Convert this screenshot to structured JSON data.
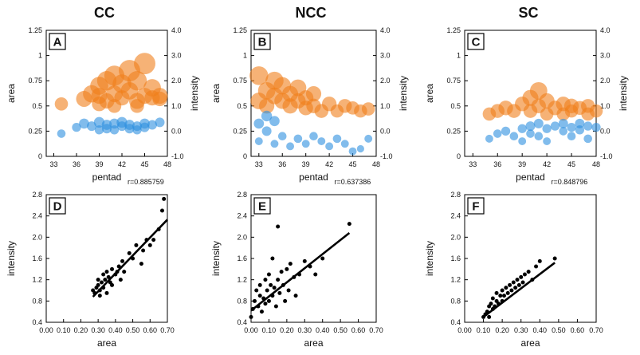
{
  "colors": {
    "area_marker": "#f07f1a",
    "intensity_marker": "#2d8fe0",
    "scatter_point": "#000000",
    "background": "#ffffff"
  },
  "chart_data": [
    {
      "panel": "A",
      "column_title": "CC",
      "type": "scatter",
      "xlabel": "pentad",
      "ylabel": "area",
      "y2label": "intensity",
      "xlim": [
        32,
        48
      ],
      "xticks": [
        "33",
        "36",
        "39",
        "42",
        "45",
        "48"
      ],
      "ylim": [
        0,
        1.25
      ],
      "yticks": [
        "0",
        "0.25",
        "0.5",
        "0.75",
        "1",
        "1.25"
      ],
      "y2lim": [
        -1.0,
        4.0
      ],
      "y2ticks": [
        "-1.0",
        "0.0",
        "1.0",
        "2.0",
        "3.0",
        "4.0"
      ],
      "series": [
        {
          "name": "area",
          "axis": "left",
          "points": [
            [
              34,
              0.52,
              1.0
            ],
            [
              37,
              0.57,
              1.4
            ],
            [
              38,
              0.62,
              1.6
            ],
            [
              39,
              0.6,
              1.4
            ],
            [
              39,
              0.7,
              1.7
            ],
            [
              40,
              0.55,
              1.3
            ],
            [
              40,
              0.75,
              1.9
            ],
            [
              41,
              0.62,
              1.5
            ],
            [
              41,
              0.8,
              2.0
            ],
            [
              42,
              0.58,
              1.3
            ],
            [
              42,
              0.72,
              1.8
            ],
            [
              43,
              0.65,
              1.6
            ],
            [
              43,
              0.85,
              2.2
            ],
            [
              44,
              0.55,
              1.4
            ],
            [
              44,
              0.75,
              1.9
            ],
            [
              45,
              0.6,
              1.4
            ],
            [
              45,
              0.92,
              2.2
            ],
            [
              46,
              0.58,
              1.3
            ],
            [
              46,
              0.68,
              1.6
            ],
            [
              47,
              0.57,
              1.2
            ],
            [
              39,
              0.52,
              1.2
            ],
            [
              41,
              0.5,
              1.1
            ],
            [
              44,
              0.5,
              1.1
            ],
            [
              47,
              0.6,
              1.4
            ]
          ]
        },
        {
          "name": "intensity",
          "axis": "right",
          "points": [
            [
              34,
              -0.1,
              0.8
            ],
            [
              36,
              0.15,
              0.9
            ],
            [
              37,
              0.3,
              1.1
            ],
            [
              38,
              0.2,
              1.0
            ],
            [
              39,
              0.35,
              1.2
            ],
            [
              39,
              0.05,
              0.9
            ],
            [
              40,
              0.25,
              1.1
            ],
            [
              40,
              0.1,
              1.0
            ],
            [
              41,
              0.3,
              1.1
            ],
            [
              41,
              0.05,
              0.9
            ],
            [
              42,
              0.2,
              1.0
            ],
            [
              42,
              0.35,
              1.2
            ],
            [
              43,
              0.1,
              1.0
            ],
            [
              43,
              0.25,
              1.1
            ],
            [
              44,
              0.2,
              1.0
            ],
            [
              44,
              0.05,
              0.9
            ],
            [
              45,
              0.3,
              1.1
            ],
            [
              45,
              0.15,
              1.0
            ],
            [
              46,
              0.25,
              1.0
            ],
            [
              47,
              0.35,
              1.0
            ]
          ]
        }
      ]
    },
    {
      "panel": "B",
      "column_title": "NCC",
      "type": "scatter",
      "xlabel": "pentad",
      "ylabel": "area",
      "y2label": "intensity",
      "xlim": [
        32,
        48
      ],
      "xticks": [
        "33",
        "36",
        "39",
        "42",
        "45",
        "48"
      ],
      "ylim": [
        0,
        1.25
      ],
      "yticks": [
        "0",
        "0.25",
        "0.5",
        "0.75",
        "1",
        "1.25"
      ],
      "y2lim": [
        -1.0,
        4.0
      ],
      "y2ticks": [
        "-1.0",
        "0.0",
        "1.0",
        "2.0",
        "3.0",
        "4.0"
      ],
      "series": [
        {
          "name": "area",
          "axis": "left",
          "points": [
            [
              33,
              0.55,
              1.5
            ],
            [
              33,
              0.8,
              1.8
            ],
            [
              34,
              0.65,
              1.6
            ],
            [
              34,
              0.5,
              1.3
            ],
            [
              35,
              0.75,
              1.7
            ],
            [
              35,
              0.6,
              1.5
            ],
            [
              36,
              0.55,
              1.4
            ],
            [
              36,
              0.7,
              1.6
            ],
            [
              37,
              0.5,
              1.3
            ],
            [
              37,
              0.62,
              1.4
            ],
            [
              38,
              0.55,
              1.3
            ],
            [
              38,
              0.68,
              1.5
            ],
            [
              39,
              0.48,
              1.2
            ],
            [
              39,
              0.58,
              1.3
            ],
            [
              40,
              0.5,
              1.2
            ],
            [
              40,
              0.62,
              1.3
            ],
            [
              41,
              0.45,
              1.1
            ],
            [
              42,
              0.52,
              1.2
            ],
            [
              43,
              0.45,
              1.0
            ],
            [
              44,
              0.5,
              1.1
            ],
            [
              45,
              0.48,
              1.0
            ],
            [
              46,
              0.45,
              1.0
            ],
            [
              47,
              0.47,
              1.0
            ]
          ]
        },
        {
          "name": "intensity",
          "axis": "right",
          "points": [
            [
              33,
              0.3,
              1.1
            ],
            [
              34,
              0.6,
              1.2
            ],
            [
              34,
              0.0,
              1.0
            ],
            [
              35,
              0.4,
              1.1
            ],
            [
              33,
              -0.4,
              0.7
            ],
            [
              35,
              -0.5,
              0.7
            ],
            [
              36,
              -0.2,
              0.8
            ],
            [
              37,
              -0.6,
              0.7
            ],
            [
              38,
              -0.3,
              0.8
            ],
            [
              39,
              -0.5,
              0.7
            ],
            [
              40,
              -0.2,
              0.8
            ],
            [
              41,
              -0.4,
              0.7
            ],
            [
              42,
              -0.6,
              0.7
            ],
            [
              43,
              -0.3,
              0.8
            ],
            [
              44,
              -0.5,
              0.7
            ],
            [
              45,
              -0.8,
              0.7
            ],
            [
              46,
              -0.7,
              0.6
            ],
            [
              47,
              -0.3,
              0.7
            ]
          ]
        }
      ]
    },
    {
      "panel": "C",
      "column_title": "SC",
      "type": "scatter",
      "xlabel": "pentad",
      "ylabel": "area",
      "y2label": "intensity",
      "xlim": [
        32,
        48
      ],
      "xticks": [
        "33",
        "36",
        "39",
        "42",
        "45",
        "48"
      ],
      "ylim": [
        0,
        1.25
      ],
      "yticks": [
        "0",
        "0.25",
        "0.5",
        "0.75",
        "1",
        "1.25"
      ],
      "y2lim": [
        -1.0,
        4.0
      ],
      "y2ticks": [
        "-1.0",
        "0.0",
        "1.0",
        "2.0",
        "3.0",
        "4.0"
      ],
      "series": [
        {
          "name": "area",
          "axis": "left",
          "points": [
            [
              35,
              0.42,
              1.0
            ],
            [
              36,
              0.45,
              1.1
            ],
            [
              37,
              0.48,
              1.2
            ],
            [
              38,
              0.45,
              1.1
            ],
            [
              39,
              0.52,
              1.2
            ],
            [
              40,
              0.58,
              1.4
            ],
            [
              40,
              0.45,
              1.1
            ],
            [
              41,
              0.65,
              1.6
            ],
            [
              41,
              0.5,
              1.2
            ],
            [
              42,
              0.55,
              1.3
            ],
            [
              42,
              0.42,
              1.0
            ],
            [
              43,
              0.48,
              1.2
            ],
            [
              44,
              0.52,
              1.2
            ],
            [
              44,
              0.42,
              1.0
            ],
            [
              45,
              0.5,
              1.2
            ],
            [
              45,
              0.45,
              1.0
            ],
            [
              46,
              0.48,
              1.1
            ],
            [
              47,
              0.5,
              1.1
            ],
            [
              47,
              0.42,
              1.0
            ],
            [
              48,
              0.45,
              1.0
            ]
          ]
        },
        {
          "name": "intensity",
          "axis": "right",
          "points": [
            [
              35,
              -0.3,
              0.7
            ],
            [
              36,
              -0.1,
              0.8
            ],
            [
              37,
              0.0,
              0.9
            ],
            [
              38,
              -0.2,
              0.8
            ],
            [
              39,
              0.1,
              0.9
            ],
            [
              39,
              -0.4,
              0.7
            ],
            [
              40,
              0.2,
              1.0
            ],
            [
              40,
              -0.1,
              0.8
            ],
            [
              41,
              0.3,
              1.0
            ],
            [
              41,
              -0.2,
              0.8
            ],
            [
              42,
              0.1,
              0.9
            ],
            [
              42,
              -0.4,
              0.7
            ],
            [
              43,
              0.2,
              0.9
            ],
            [
              44,
              0.3,
              1.0
            ],
            [
              44,
              0.0,
              0.8
            ],
            [
              45,
              0.15,
              0.9
            ],
            [
              45,
              -0.2,
              0.8
            ],
            [
              46,
              0.3,
              1.0
            ],
            [
              46,
              0.05,
              0.9
            ],
            [
              47,
              0.2,
              0.9
            ],
            [
              47,
              -0.3,
              0.8
            ],
            [
              48,
              0.15,
              0.9
            ]
          ]
        }
      ]
    },
    {
      "panel": "D",
      "type": "scatter",
      "xlabel": "area",
      "ylabel": "intensity",
      "correlation": "r=0.885759",
      "xlim": [
        0,
        0.7
      ],
      "xticks": [
        "0.00",
        "0.10",
        "0.20",
        "0.30",
        "0.40",
        "0.50",
        "0.60",
        "0.70"
      ],
      "ylim": [
        0.4,
        2.8
      ],
      "yticks": [
        "0.4",
        "0.8",
        "1.2",
        "1.6",
        "2.0",
        "2.4",
        "2.8"
      ],
      "x": [
        0.27,
        0.28,
        0.29,
        0.3,
        0.3,
        0.31,
        0.31,
        0.32,
        0.33,
        0.33,
        0.34,
        0.35,
        0.35,
        0.36,
        0.37,
        0.38,
        0.38,
        0.4,
        0.41,
        0.42,
        0.43,
        0.44,
        0.45,
        0.48,
        0.5,
        0.52,
        0.55,
        0.56,
        0.58,
        0.6,
        0.62,
        0.65,
        0.67,
        0.68
      ],
      "y": [
        1.0,
        0.95,
        1.05,
        1.1,
        1.2,
        0.9,
        1.0,
        1.15,
        1.3,
        1.05,
        1.2,
        1.35,
        0.95,
        1.25,
        1.15,
        1.4,
        1.1,
        1.3,
        1.35,
        1.45,
        1.2,
        1.55,
        1.35,
        1.7,
        1.6,
        1.85,
        1.5,
        1.75,
        1.95,
        1.85,
        1.95,
        2.15,
        2.5,
        2.72
      ],
      "fit": [
        [
          0.27,
          0.88
        ],
        [
          0.7,
          2.33
        ]
      ]
    },
    {
      "panel": "E",
      "type": "scatter",
      "xlabel": "area",
      "ylabel": "intensity",
      "correlation": "r=0.637386",
      "xlim": [
        0,
        0.7
      ],
      "xticks": [
        "0.00",
        "0.10",
        "0.20",
        "0.30",
        "0.40",
        "0.50",
        "0.60",
        "0.70"
      ],
      "ylim": [
        0.4,
        2.8
      ],
      "yticks": [
        "0.4",
        "0.8",
        "1.2",
        "1.6",
        "2.0",
        "2.4",
        "2.8"
      ],
      "x": [
        0.0,
        0.01,
        0.02,
        0.03,
        0.04,
        0.05,
        0.05,
        0.06,
        0.07,
        0.08,
        0.08,
        0.09,
        0.1,
        0.1,
        0.11,
        0.12,
        0.12,
        0.13,
        0.14,
        0.15,
        0.15,
        0.16,
        0.17,
        0.18,
        0.19,
        0.2,
        0.21,
        0.22,
        0.24,
        0.25,
        0.27,
        0.3,
        0.33,
        0.36,
        0.4,
        0.55
      ],
      "y": [
        0.5,
        0.65,
        0.8,
        1.0,
        0.7,
        0.9,
        1.1,
        0.6,
        0.85,
        1.2,
        0.75,
        1.0,
        1.3,
        0.8,
        1.1,
        0.9,
        1.6,
        1.05,
        0.7,
        1.2,
        2.2,
        0.95,
        1.35,
        1.1,
        0.8,
        1.4,
        1.0,
        1.5,
        1.25,
        0.9,
        1.3,
        1.55,
        1.45,
        1.3,
        1.6,
        2.25
      ],
      "fit": [
        [
          0.0,
          0.62
        ],
        [
          0.55,
          2.08
        ]
      ]
    },
    {
      "panel": "F",
      "type": "scatter",
      "xlabel": "area",
      "ylabel": "intensity",
      "correlation": "r=0.848796",
      "xlim": [
        0,
        0.7
      ],
      "xticks": [
        "0.00",
        "0.10",
        "0.20",
        "0.30",
        "0.40",
        "0.50",
        "0.60",
        "0.70"
      ],
      "ylim": [
        0.4,
        2.8
      ],
      "yticks": [
        "0.4",
        "0.8",
        "1.2",
        "1.6",
        "2.0",
        "2.4",
        "2.8"
      ],
      "x": [
        0.1,
        0.11,
        0.12,
        0.13,
        0.13,
        0.14,
        0.15,
        0.15,
        0.16,
        0.17,
        0.17,
        0.18,
        0.19,
        0.2,
        0.2,
        0.21,
        0.22,
        0.23,
        0.24,
        0.25,
        0.26,
        0.27,
        0.28,
        0.29,
        0.3,
        0.31,
        0.32,
        0.34,
        0.36,
        0.38,
        0.4,
        0.48
      ],
      "y": [
        0.5,
        0.55,
        0.6,
        0.7,
        0.5,
        0.75,
        0.65,
        0.85,
        0.7,
        0.8,
        0.95,
        0.75,
        0.9,
        1.0,
        0.8,
        0.9,
        1.05,
        0.95,
        1.1,
        1.0,
        1.15,
        1.05,
        1.2,
        1.1,
        1.25,
        1.15,
        1.3,
        1.35,
        1.2,
        1.45,
        1.55,
        1.6
      ],
      "fit": [
        [
          0.1,
          0.5
        ],
        [
          0.48,
          1.52
        ]
      ]
    }
  ]
}
